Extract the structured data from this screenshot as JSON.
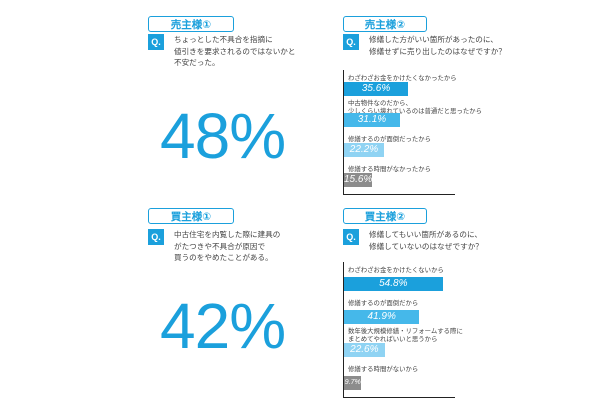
{
  "panels": [
    {
      "tag": "売主様①",
      "q_mark": "Q.",
      "question": "ちょっとした不具合を指摘に\n値引きを要求されるのではないかと\n不安だった。",
      "big_value": "48%"
    },
    {
      "tag": "売主様②",
      "q_mark": "Q.",
      "question": "修繕した方がいい箇所があったのに、\n修繕せずに売り出したのはなぜですか？"
    },
    {
      "tag": "買主様①",
      "q_mark": "Q.",
      "question": "中古住宅を内覧した際に建具の\nがたつきや不具合が原因で\n買うのをやめたことがある。",
      "big_value": "42%"
    },
    {
      "tag": "買主様②",
      "q_mark": "Q.",
      "question": "修繕してもいい箇所があるのに、\n修繕していないのはなぜですか？"
    }
  ],
  "chart_data": [
    {
      "type": "bar",
      "orientation": "horizontal",
      "categories": [
        "わざわざお金をかけたくなかったから",
        "中古物件なのだから、\n少しくらい壊れているのは普通だと思ったから",
        "修繕するのが面倒だったから",
        "修繕する時間がなかったから"
      ],
      "values": [
        35.6,
        31.1,
        22.2,
        15.6
      ],
      "value_labels": [
        "35.6%",
        "31.1%",
        "22.2%",
        "15.6%"
      ],
      "xlim": [
        0,
        60
      ],
      "colors": [
        "#1ba0dc",
        "#45b8ea",
        "#8fd3f3",
        "#8c8c8c"
      ]
    },
    {
      "type": "bar",
      "orientation": "horizontal",
      "categories": [
        "わざわざお金をかけたくないから",
        "修繕するのが面倒だから",
        "数年後大規模修繕・リフォームする際に\nまとめてやればいいと思うから",
        "修繕する時間がないから"
      ],
      "values": [
        54.8,
        41.9,
        22.6,
        9.7
      ],
      "value_labels": [
        "54.8%",
        "41.9%",
        "22.6%",
        "9.7%"
      ],
      "xlim": [
        0,
        60
      ],
      "colors": [
        "#1ba0dc",
        "#45b8ea",
        "#8fd3f3",
        "#8c8c8c"
      ]
    }
  ]
}
